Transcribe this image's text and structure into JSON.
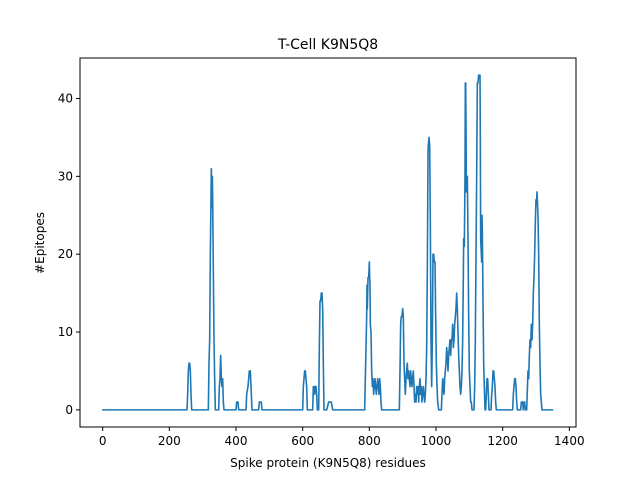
{
  "chart_data": {
    "type": "line",
    "title": "T-Cell K9N5Q8",
    "xlabel": "Spike protein (K9N5Q8) residues",
    "ylabel": "#Epitopes",
    "xlim": [
      -68,
      1420
    ],
    "ylim": [
      -2.2,
      45.2
    ],
    "xticks": [
      0,
      200,
      400,
      600,
      800,
      1000,
      1200,
      1400
    ],
    "yticks": [
      0,
      10,
      20,
      30,
      40
    ],
    "grid": false,
    "legend": "none",
    "color": "#1f77b4",
    "series": [
      {
        "points": [
          [
            0,
            0
          ],
          [
            253,
            0
          ],
          [
            255,
            2
          ],
          [
            257,
            5
          ],
          [
            259,
            6
          ],
          [
            261,
            6
          ],
          [
            263,
            5
          ],
          [
            265,
            2
          ],
          [
            267,
            0
          ],
          [
            317,
            0
          ],
          [
            319,
            6
          ],
          [
            321,
            9
          ],
          [
            323,
            20
          ],
          [
            325,
            27
          ],
          [
            326,
            31
          ],
          [
            327,
            28
          ],
          [
            328,
            26
          ],
          [
            329,
            30
          ],
          [
            330,
            27
          ],
          [
            332,
            18
          ],
          [
            334,
            9
          ],
          [
            336,
            4
          ],
          [
            338,
            0
          ],
          [
            348,
            0
          ],
          [
            350,
            3
          ],
          [
            352,
            4
          ],
          [
            354,
            7
          ],
          [
            356,
            4
          ],
          [
            358,
            3
          ],
          [
            360,
            4
          ],
          [
            362,
            1
          ],
          [
            364,
            0
          ],
          [
            400,
            0
          ],
          [
            402,
            1
          ],
          [
            406,
            1
          ],
          [
            408,
            0
          ],
          [
            430,
            0
          ],
          [
            432,
            2
          ],
          [
            436,
            3
          ],
          [
            438,
            4
          ],
          [
            440,
            5
          ],
          [
            443,
            5
          ],
          [
            445,
            3
          ],
          [
            448,
            0
          ],
          [
            468,
            0
          ],
          [
            470,
            1
          ],
          [
            476,
            1
          ],
          [
            478,
            0
          ],
          [
            600,
            0
          ],
          [
            602,
            3
          ],
          [
            604,
            4
          ],
          [
            606,
            5
          ],
          [
            608,
            5
          ],
          [
            610,
            4
          ],
          [
            612,
            3
          ],
          [
            614,
            0
          ],
          [
            630,
            0
          ],
          [
            632,
            3
          ],
          [
            634,
            3
          ],
          [
            636,
            2
          ],
          [
            638,
            3
          ],
          [
            640,
            3
          ],
          [
            642,
            2
          ],
          [
            644,
            0
          ],
          [
            648,
            0
          ],
          [
            650,
            8
          ],
          [
            652,
            14
          ],
          [
            654,
            14
          ],
          [
            656,
            15
          ],
          [
            658,
            15
          ],
          [
            660,
            13
          ],
          [
            662,
            6
          ],
          [
            664,
            0
          ],
          [
            672,
            0
          ],
          [
            678,
            1
          ],
          [
            686,
            1
          ],
          [
            690,
            0
          ],
          [
            786,
            0
          ],
          [
            788,
            4
          ],
          [
            790,
            8
          ],
          [
            792,
            12
          ],
          [
            793,
            16
          ],
          [
            794,
            13
          ],
          [
            796,
            17
          ],
          [
            798,
            17
          ],
          [
            799,
            18
          ],
          [
            800,
            19
          ],
          [
            801,
            17
          ],
          [
            802,
            16
          ],
          [
            803,
            11
          ],
          [
            805,
            10
          ],
          [
            807,
            5
          ],
          [
            809,
            3
          ],
          [
            811,
            4
          ],
          [
            813,
            2
          ],
          [
            815,
            3
          ],
          [
            817,
            4
          ],
          [
            819,
            3
          ],
          [
            821,
            2
          ],
          [
            823,
            3
          ],
          [
            825,
            4
          ],
          [
            827,
            3
          ],
          [
            829,
            2
          ],
          [
            831,
            4
          ],
          [
            833,
            3
          ],
          [
            835,
            1
          ],
          [
            837,
            0
          ],
          [
            890,
            0
          ],
          [
            892,
            5
          ],
          [
            894,
            11
          ],
          [
            896,
            12
          ],
          [
            898,
            12
          ],
          [
            900,
            13
          ],
          [
            902,
            12
          ],
          [
            904,
            6
          ],
          [
            906,
            4
          ],
          [
            908,
            2
          ],
          [
            910,
            4
          ],
          [
            912,
            5
          ],
          [
            914,
            6
          ],
          [
            916,
            4
          ],
          [
            918,
            5
          ],
          [
            920,
            4
          ],
          [
            922,
            3
          ],
          [
            924,
            5
          ],
          [
            926,
            4
          ],
          [
            928,
            3
          ],
          [
            930,
            4
          ],
          [
            932,
            5
          ],
          [
            934,
            3
          ],
          [
            936,
            1
          ],
          [
            938,
            2
          ],
          [
            940,
            1
          ],
          [
            942,
            3
          ],
          [
            944,
            2
          ],
          [
            946,
            3
          ],
          [
            948,
            1
          ],
          [
            950,
            3
          ],
          [
            952,
            4
          ],
          [
            954,
            2
          ],
          [
            956,
            3
          ],
          [
            958,
            1
          ],
          [
            960,
            2
          ],
          [
            962,
            3
          ],
          [
            964,
            2
          ],
          [
            966,
            1
          ],
          [
            968,
            2
          ],
          [
            970,
            4
          ],
          [
            972,
            8
          ],
          [
            974,
            18
          ],
          [
            976,
            33
          ],
          [
            977,
            34
          ],
          [
            979,
            35
          ],
          [
            981,
            34
          ],
          [
            983,
            24
          ],
          [
            985,
            9
          ],
          [
            987,
            3
          ],
          [
            989,
            9
          ],
          [
            991,
            20
          ],
          [
            993,
            20
          ],
          [
            995,
            19
          ],
          [
            997,
            19
          ],
          [
            999,
            12
          ],
          [
            1001,
            6
          ],
          [
            1003,
            3
          ],
          [
            1005,
            1
          ],
          [
            1008,
            0
          ],
          [
            1016,
            0
          ],
          [
            1018,
            2
          ],
          [
            1020,
            4
          ],
          [
            1022,
            3
          ],
          [
            1024,
            2
          ],
          [
            1026,
            4
          ],
          [
            1028,
            5
          ],
          [
            1030,
            6
          ],
          [
            1032,
            8
          ],
          [
            1034,
            7
          ],
          [
            1036,
            5
          ],
          [
            1038,
            7
          ],
          [
            1040,
            8
          ],
          [
            1042,
            9
          ],
          [
            1044,
            7
          ],
          [
            1046,
            9
          ],
          [
            1048,
            9
          ],
          [
            1050,
            11
          ],
          [
            1052,
            8
          ],
          [
            1054,
            9
          ],
          [
            1056,
            11
          ],
          [
            1058,
            12
          ],
          [
            1060,
            13
          ],
          [
            1062,
            15
          ],
          [
            1064,
            13
          ],
          [
            1066,
            10
          ],
          [
            1068,
            7
          ],
          [
            1070,
            5
          ],
          [
            1072,
            3
          ],
          [
            1074,
            2
          ],
          [
            1076,
            3
          ],
          [
            1078,
            5
          ],
          [
            1080,
            9
          ],
          [
            1082,
            17
          ],
          [
            1083,
            22
          ],
          [
            1085,
            21
          ],
          [
            1087,
            30
          ],
          [
            1088,
            42
          ],
          [
            1089,
            42
          ],
          [
            1090,
            37
          ],
          [
            1091,
            28
          ],
          [
            1092,
            30
          ],
          [
            1094,
            30
          ],
          [
            1096,
            22
          ],
          [
            1098,
            12
          ],
          [
            1100,
            5
          ],
          [
            1102,
            3
          ],
          [
            1104,
            1
          ],
          [
            1106,
            1
          ],
          [
            1108,
            0
          ],
          [
            1114,
            0
          ],
          [
            1116,
            3
          ],
          [
            1118,
            9
          ],
          [
            1120,
            20
          ],
          [
            1122,
            30
          ],
          [
            1124,
            42
          ],
          [
            1126,
            42
          ],
          [
            1128,
            43
          ],
          [
            1130,
            43
          ],
          [
            1132,
            43
          ],
          [
            1133,
            35
          ],
          [
            1134,
            22
          ],
          [
            1136,
            20
          ],
          [
            1137,
            19
          ],
          [
            1138,
            25
          ],
          [
            1139,
            23
          ],
          [
            1141,
            14
          ],
          [
            1143,
            6
          ],
          [
            1145,
            3
          ],
          [
            1147,
            0
          ],
          [
            1149,
            0
          ],
          [
            1151,
            2
          ],
          [
            1153,
            4
          ],
          [
            1155,
            4
          ],
          [
            1157,
            2
          ],
          [
            1159,
            0
          ],
          [
            1165,
            0
          ],
          [
            1167,
            2
          ],
          [
            1169,
            3
          ],
          [
            1171,
            5
          ],
          [
            1173,
            5
          ],
          [
            1175,
            4
          ],
          [
            1177,
            3
          ],
          [
            1179,
            1
          ],
          [
            1181,
            0
          ],
          [
            1230,
            0
          ],
          [
            1232,
            2
          ],
          [
            1234,
            3
          ],
          [
            1236,
            4
          ],
          [
            1238,
            4
          ],
          [
            1240,
            3
          ],
          [
            1242,
            1
          ],
          [
            1244,
            0
          ],
          [
            1254,
            0
          ],
          [
            1256,
            1
          ],
          [
            1260,
            1
          ],
          [
            1262,
            0
          ],
          [
            1264,
            1
          ],
          [
            1266,
            1
          ],
          [
            1268,
            0
          ],
          [
            1272,
            0
          ],
          [
            1276,
            5
          ],
          [
            1278,
            4
          ],
          [
            1280,
            7
          ],
          [
            1282,
            9
          ],
          [
            1284,
            8
          ],
          [
            1286,
            11
          ],
          [
            1288,
            9
          ],
          [
            1290,
            11
          ],
          [
            1292,
            15
          ],
          [
            1294,
            17
          ],
          [
            1296,
            20
          ],
          [
            1298,
            24
          ],
          [
            1300,
            27
          ],
          [
            1302,
            27
          ],
          [
            1303,
            28
          ],
          [
            1304,
            27
          ],
          [
            1306,
            25
          ],
          [
            1308,
            20
          ],
          [
            1310,
            11
          ],
          [
            1312,
            6
          ],
          [
            1314,
            2
          ],
          [
            1316,
            1
          ],
          [
            1318,
            0
          ],
          [
            1350,
            0
          ]
        ]
      }
    ]
  }
}
